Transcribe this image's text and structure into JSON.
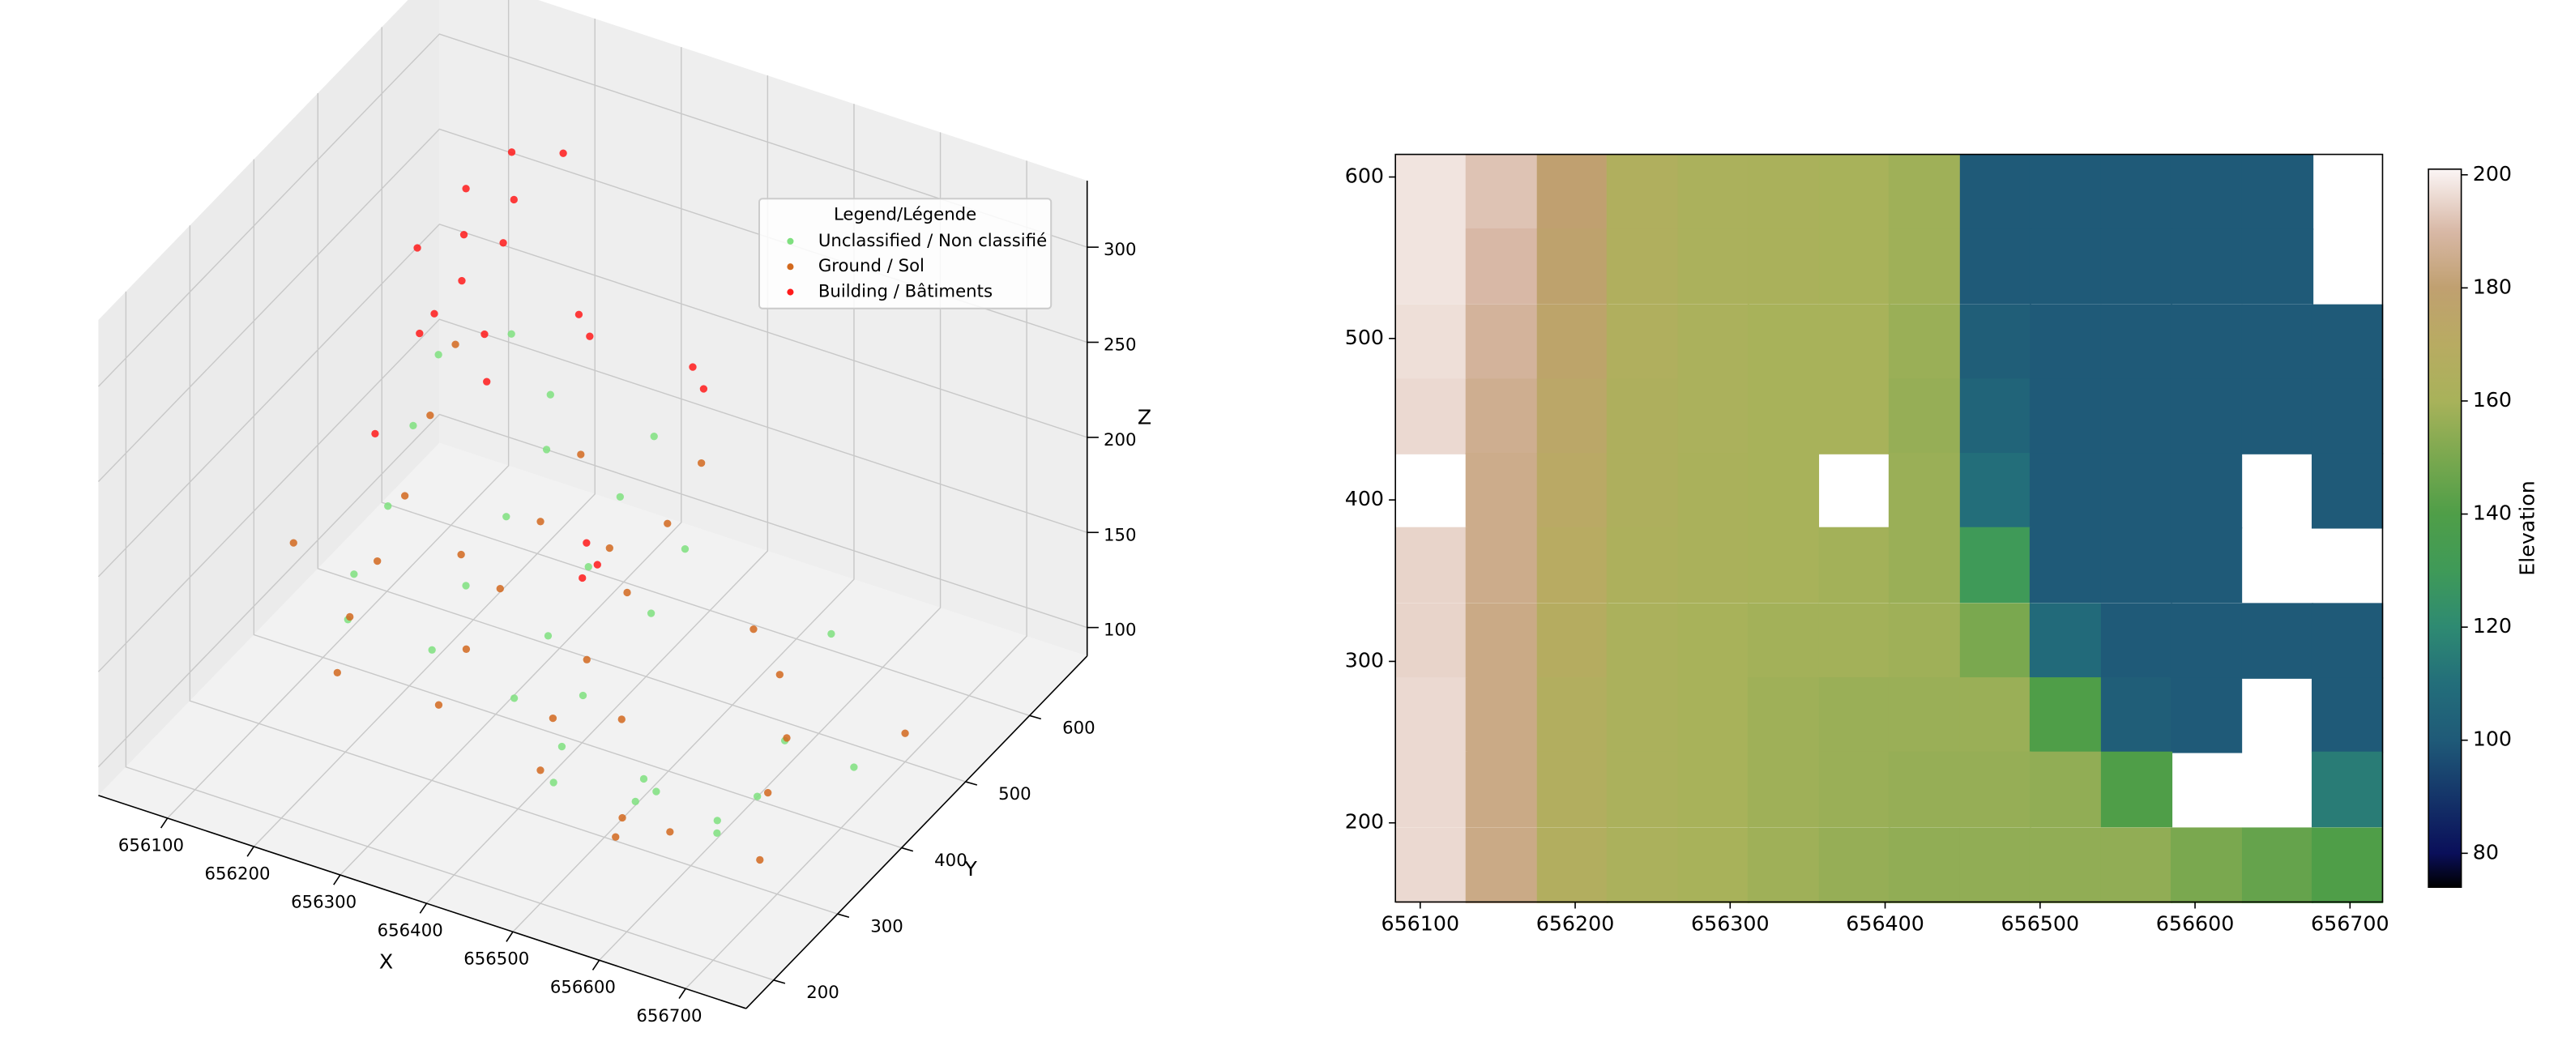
{
  "chart_data": [
    {
      "type": "scatter3d",
      "xlabel": "X",
      "ylabel": "Y",
      "zlabel": "Z",
      "xlim": [
        656020,
        656770
      ],
      "ylim": [
        157,
        690
      ],
      "zlim": [
        85,
        335
      ],
      "xticks": [
        656100,
        656200,
        656300,
        656400,
        656500,
        656600,
        656700
      ],
      "yticks": [
        200,
        300,
        400,
        500,
        600
      ],
      "zticks": [
        100,
        150,
        200,
        250,
        300
      ],
      "grid": true,
      "legend": "upper right",
      "legend_title": "Legend/Légende",
      "series": [
        {
          "name": "Unclassified / Non classifié",
          "color": "#7fe07f",
          "x": [
            656130,
            656160,
            656190,
            656210,
            656240,
            656270,
            656290,
            656310,
            656330,
            656350,
            656370,
            656400,
            656420,
            656440,
            656460,
            656490,
            656510,
            656530,
            656560,
            656590,
            656610,
            656620,
            656640,
            656660,
            656690,
            656700,
            656230,
            656170,
            656480,
            656570
          ],
          "y": [
            540,
            460,
            380,
            300,
            250,
            520,
            430,
            340,
            260,
            580,
            500,
            410,
            320,
            240,
            480,
            280,
            220,
            180,
            300,
            240,
            200,
            420,
            350,
            260,
            220,
            420,
            580,
            600,
            400,
            560
          ],
          "z": [
            200,
            195,
            185,
            180,
            178,
            178,
            177,
            175,
            172,
            176,
            175,
            174,
            172,
            170,
            168,
            165,
            162,
            160,
            118,
            150,
            155,
            112,
            110,
            125,
            150,
            110,
            180,
            196,
            165,
            112
          ]
        },
        {
          "name": "Ground / Sol",
          "color": "#d2691e",
          "x": [
            656120,
            656150,
            656180,
            656200,
            656220,
            656250,
            656280,
            656300,
            656320,
            656340,
            656360,
            656390,
            656410,
            656430,
            656450,
            656470,
            656500,
            656520,
            656550,
            656580,
            656600,
            656630,
            656650,
            656680,
            656700,
            656480,
            656260,
            656140,
            656380,
            656540
          ],
          "y": [
            580,
            500,
            420,
            350,
            280,
            220,
            560,
            470,
            380,
            300,
            230,
            600,
            520,
            430,
            340,
            260,
            200,
            300,
            250,
            220,
            450,
            380,
            200,
            300,
            500,
            560,
            400,
            300,
            470,
            520
          ],
          "z": [
            190,
            185,
            175,
            168,
            166,
            162,
            163,
            162,
            161,
            160,
            158,
            161,
            160,
            158,
            157,
            157,
            155,
            150,
            110,
            135,
            100,
            100,
            145,
            100,
            100,
            101,
            163,
            186,
            160,
            100
          ]
        },
        {
          "name": "Building / Bâtiments",
          "color": "#ff1a1a",
          "x": [
            656110,
            656115,
            656120,
            656140,
            656160,
            656150,
            656200,
            656210,
            656205,
            656230,
            656250,
            656260,
            656300,
            656320,
            656380,
            656400,
            656420,
            656440,
            656430,
            656190
          ],
          "y": [
            610,
            600,
            590,
            520,
            470,
            480,
            560,
            550,
            540,
            600,
            450,
            440,
            530,
            520,
            600,
            590,
            380,
            370,
            360,
            360
          ],
          "z": [
            260,
            240,
            220,
            230,
            240,
            280,
            310,
            290,
            270,
            300,
            260,
            240,
            250,
            245,
            210,
            205,
            200,
            195,
            190,
            230
          ]
        }
      ]
    },
    {
      "type": "heatmap",
      "colorbar_label": "Elevation",
      "xlim": [
        656084,
        656721
      ],
      "ylim": [
        151,
        614
      ],
      "xticks": [
        656100,
        656200,
        656300,
        656400,
        656500,
        656600,
        656700
      ],
      "yticks": [
        200,
        300,
        400,
        500,
        600
      ],
      "zlim": [
        74,
        201
      ],
      "zticks": [
        80,
        100,
        120,
        140,
        160,
        180,
        200
      ],
      "colorscale": [
        [
          74,
          "#000000"
        ],
        [
          80,
          "#0a0f5a"
        ],
        [
          100,
          "#1f5a78"
        ],
        [
          110,
          "#236e7a"
        ],
        [
          120,
          "#2e8a72"
        ],
        [
          130,
          "#3f9a58"
        ],
        [
          140,
          "#4f9e48"
        ],
        [
          150,
          "#7aa84f"
        ],
        [
          160,
          "#a8b25a"
        ],
        [
          170,
          "#b8ab62"
        ],
        [
          180,
          "#c0a070"
        ],
        [
          190,
          "#d8b8a6"
        ],
        [
          201,
          "#fbf5f5"
        ]
      ],
      "x": [
        656107,
        656152,
        656198,
        656243,
        656289,
        656334,
        656380,
        656425,
        656471,
        656516,
        656562,
        656607,
        656653,
        656698
      ],
      "y": [
        591,
        545,
        498,
        452,
        406,
        360,
        313,
        267,
        221,
        174
      ],
      "z": [
        [
          198,
          192,
          180,
          165,
          162,
          161,
          160,
          158,
          100,
          100,
          100,
          100,
          100,
          null
        ],
        [
          198,
          190,
          178,
          165,
          162,
          161,
          160,
          158,
          100,
          100,
          100,
          100,
          100,
          null
        ],
        [
          197,
          188,
          176,
          165,
          162,
          160,
          160,
          157,
          102,
          100,
          100,
          100,
          100,
          100
        ],
        [
          196,
          186,
          174,
          164,
          162,
          160,
          160,
          156,
          105,
          100,
          100,
          100,
          100,
          100
        ],
        [
          null,
          185,
          172,
          164,
          161,
          160,
          null,
          157,
          110,
          100,
          100,
          100,
          null,
          100
        ],
        [
          195,
          185,
          170,
          163,
          161,
          160,
          159,
          157,
          130,
          100,
          100,
          100,
          null,
          null
        ],
        [
          195,
          184,
          168,
          162,
          160,
          159,
          159,
          158,
          150,
          108,
          100,
          100,
          100,
          100
        ],
        [
          196,
          184,
          166,
          162,
          160,
          158,
          157,
          157,
          157,
          140,
          102,
          100,
          null,
          100
        ],
        [
          196,
          184,
          166,
          162,
          160,
          158,
          157,
          156,
          156,
          155,
          140,
          null,
          null,
          115
        ],
        [
          196,
          184,
          166,
          162,
          160,
          158,
          156,
          155,
          155,
          155,
          155,
          150,
          145,
          140
        ]
      ]
    }
  ]
}
